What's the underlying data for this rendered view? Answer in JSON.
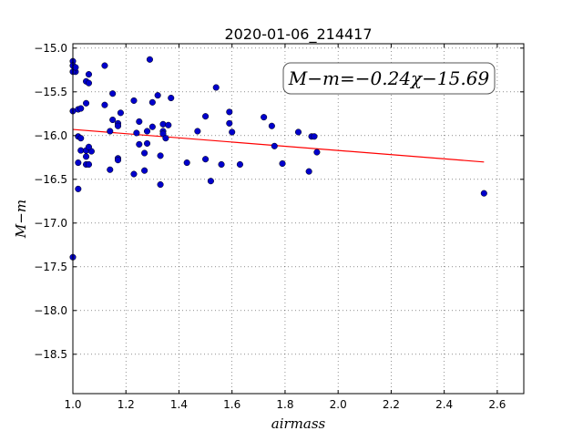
{
  "chart_data": {
    "type": "scatter",
    "title": "2020-01-06_214417",
    "xlabel": "airmass",
    "ylabel": "M−m",
    "xlim": [
      1.0,
      2.7
    ],
    "ylim": [
      -18.95,
      -14.95
    ],
    "y_inverted": true,
    "grid": true,
    "x_ticks": [
      1.0,
      1.2,
      1.4,
      1.6,
      1.8,
      2.0,
      2.2,
      2.4,
      2.6
    ],
    "x_tick_labels": [
      "1.0",
      "1.2",
      "1.4",
      "1.6",
      "1.8",
      "2.0",
      "2.2",
      "2.4",
      "2.6"
    ],
    "y_ticks": [
      -15.0,
      -15.5,
      -16.0,
      -16.5,
      -17.0,
      -17.5,
      -18.0,
      -18.5
    ],
    "y_tick_labels": [
      "−15.0",
      "−15.5",
      "−16.0",
      "−16.5",
      "−17.0",
      "−17.5",
      "−18.0",
      "−18.5"
    ],
    "annotation": "M−m=−0.24χ−15.69",
    "fit": {
      "slope": -0.24,
      "intercept": -15.69,
      "x_range": [
        1.0,
        2.55
      ],
      "color": "#ff0000"
    },
    "series": [
      {
        "marker_color": "#0000cc",
        "points": [
          [
            1.0,
            -15.15
          ],
          [
            1.0,
            -15.2
          ],
          [
            1.01,
            -15.27
          ],
          [
            1.0,
            -15.27
          ],
          [
            1.01,
            -15.22
          ],
          [
            1.0,
            -15.72
          ],
          [
            1.02,
            -15.7
          ],
          [
            1.03,
            -15.69
          ],
          [
            1.05,
            -15.63
          ],
          [
            1.05,
            -15.38
          ],
          [
            1.06,
            -15.4
          ],
          [
            1.06,
            -15.3
          ],
          [
            1.12,
            -15.2
          ],
          [
            1.02,
            -16.01
          ],
          [
            1.03,
            -16.03
          ],
          [
            1.03,
            -16.17
          ],
          [
            1.05,
            -16.17
          ],
          [
            1.05,
            -16.24
          ],
          [
            1.07,
            -16.18
          ],
          [
            1.06,
            -16.13
          ],
          [
            1.02,
            -16.31
          ],
          [
            1.05,
            -16.33
          ],
          [
            1.06,
            -16.33
          ],
          [
            1.02,
            -16.61
          ],
          [
            1.0,
            -17.39
          ],
          [
            1.12,
            -15.65
          ],
          [
            1.15,
            -15.52
          ],
          [
            1.15,
            -15.82
          ],
          [
            1.17,
            -15.86
          ],
          [
            1.18,
            -15.74
          ],
          [
            1.14,
            -15.95
          ],
          [
            1.17,
            -15.89
          ],
          [
            1.17,
            -16.26
          ],
          [
            1.17,
            -16.28
          ],
          [
            1.14,
            -16.39
          ],
          [
            1.23,
            -15.6
          ],
          [
            1.25,
            -15.84
          ],
          [
            1.24,
            -15.97
          ],
          [
            1.25,
            -16.1
          ],
          [
            1.27,
            -16.2
          ],
          [
            1.27,
            -16.4
          ],
          [
            1.23,
            -16.44
          ],
          [
            1.28,
            -15.95
          ],
          [
            1.28,
            -16.09
          ],
          [
            1.29,
            -15.13
          ],
          [
            1.3,
            -15.62
          ],
          [
            1.3,
            -15.9
          ],
          [
            1.32,
            -15.54
          ],
          [
            1.33,
            -16.23
          ],
          [
            1.34,
            -15.87
          ],
          [
            1.34,
            -15.95
          ],
          [
            1.34,
            -15.98
          ],
          [
            1.35,
            -16.03
          ],
          [
            1.36,
            -15.88
          ],
          [
            1.37,
            -15.57
          ],
          [
            1.33,
            -16.56
          ],
          [
            1.43,
            -16.31
          ],
          [
            1.47,
            -15.95
          ],
          [
            1.5,
            -15.78
          ],
          [
            1.5,
            -16.27
          ],
          [
            1.52,
            -16.52
          ],
          [
            1.54,
            -15.45
          ],
          [
            1.56,
            -16.33
          ],
          [
            1.59,
            -15.73
          ],
          [
            1.59,
            -15.86
          ],
          [
            1.6,
            -15.96
          ],
          [
            1.63,
            -16.33
          ],
          [
            1.72,
            -15.79
          ],
          [
            1.75,
            -15.89
          ],
          [
            1.76,
            -16.12
          ],
          [
            1.79,
            -16.32
          ],
          [
            1.85,
            -15.96
          ],
          [
            1.89,
            -16.41
          ],
          [
            1.9,
            -16.01
          ],
          [
            1.91,
            -16.01
          ],
          [
            1.92,
            -16.19
          ],
          [
            2.55,
            -16.66
          ]
        ]
      }
    ]
  }
}
